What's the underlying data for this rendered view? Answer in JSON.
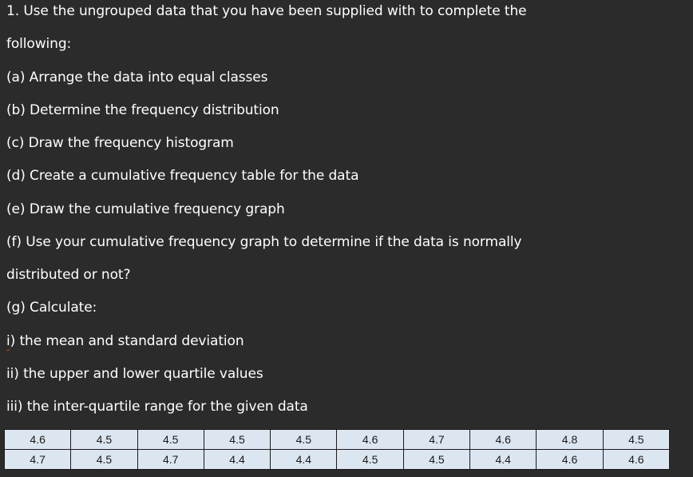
{
  "question": {
    "lines": [
      "1. Use the ungrouped data that you have been supplied with to complete the",
      "following:",
      "(a) Arrange the data into equal classes",
      "(b) Determine the frequency distribution",
      "(c) Draw the frequency histogram",
      "(d) Create a cumulative frequency table for the data",
      "(e) Draw the cumulative frequency graph",
      "(f) Use your cumulative frequency graph to determine if the data is normally",
      "distributed or not?",
      "(g) Calculate:",
      "i) the mean and standard deviation",
      "ii) the upper and lower quartile values",
      "iii) the inter-quartile range for the given data"
    ],
    "roman_i": {
      "marker": "i",
      "text": ") the mean and standard deviation"
    }
  },
  "data_table": {
    "rows": [
      [
        "4.6",
        "4.5",
        "4.5",
        "4.5",
        "4.5",
        "4.6",
        "4.7",
        "4.6",
        "4.8",
        "4.5"
      ],
      [
        "4.7",
        "4.5",
        "4.7",
        "4.4",
        "4.4",
        "4.5",
        "4.5",
        "4.4",
        "4.6",
        "4.6"
      ]
    ]
  },
  "colors": {
    "background": "#2b2b2b",
    "text": "#ffffff",
    "table_fill": "#dce6f1",
    "table_border": "#1a1a1a",
    "spellcheck_underline": "#c0392b"
  }
}
